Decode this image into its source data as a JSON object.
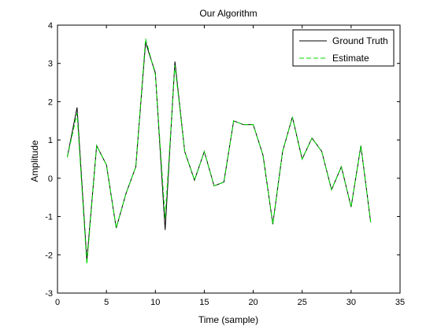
{
  "chart_data": {
    "type": "line",
    "title": "Our Algorithm",
    "xlabel": "Time (sample)",
    "ylabel": "Amplitude",
    "xlim": [
      0,
      35
    ],
    "ylim": [
      -3,
      4
    ],
    "xticks": [
      0,
      5,
      10,
      15,
      20,
      25,
      30,
      35
    ],
    "yticks": [
      -3,
      -2,
      -1,
      0,
      1,
      2,
      3,
      4
    ],
    "grid": false,
    "legend_position": "top-right",
    "x": [
      1,
      2,
      3,
      4,
      5,
      6,
      7,
      8,
      9,
      10,
      11,
      12,
      13,
      14,
      15,
      16,
      17,
      18,
      19,
      20,
      21,
      22,
      23,
      24,
      25,
      26,
      27,
      28,
      29,
      30,
      31,
      32
    ],
    "series": [
      {
        "name": "Ground Truth",
        "color": "#000000",
        "style": "solid",
        "values": [
          0.55,
          1.85,
          -2.15,
          0.85,
          0.35,
          -1.3,
          -0.4,
          0.3,
          3.55,
          2.75,
          -1.35,
          3.05,
          0.7,
          -0.05,
          0.7,
          -0.2,
          -0.1,
          1.5,
          1.4,
          1.4,
          0.6,
          -1.2,
          0.7,
          1.6,
          0.5,
          1.05,
          0.7,
          -0.3,
          0.3,
          -0.75,
          0.85,
          -1.15
        ]
      },
      {
        "name": "Estimate",
        "color": "#00dd00",
        "style": "dashed",
        "values": [
          0.55,
          1.7,
          -2.25,
          0.85,
          0.35,
          -1.3,
          -0.4,
          0.3,
          3.65,
          2.7,
          -1.05,
          2.95,
          0.7,
          -0.05,
          0.7,
          -0.2,
          -0.1,
          1.5,
          1.4,
          1.4,
          0.6,
          -1.2,
          0.7,
          1.6,
          0.5,
          1.05,
          0.7,
          -0.3,
          0.3,
          -0.75,
          0.85,
          -1.15
        ]
      }
    ]
  }
}
